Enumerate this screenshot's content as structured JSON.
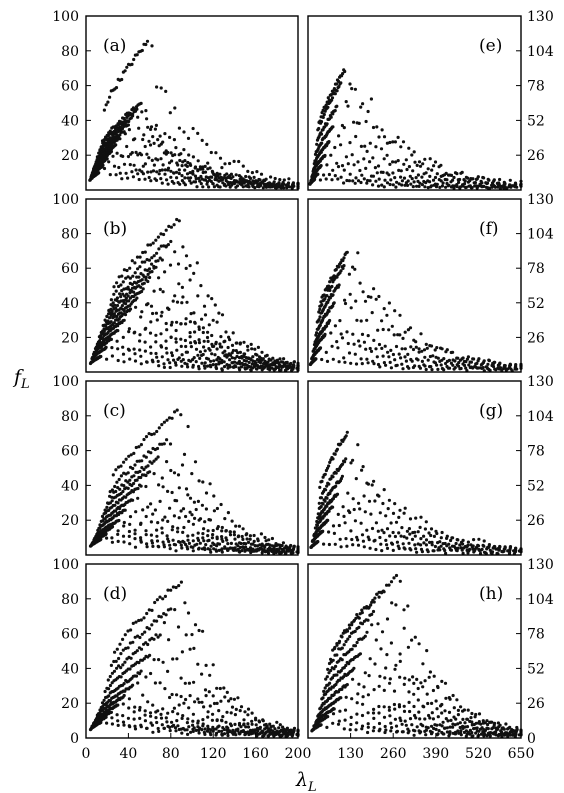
{
  "figure": {
    "ylabel": "f",
    "ylabel_sub": "L",
    "xlabel": "λ",
    "xlabel_sub": "L"
  },
  "chart_data": [
    {
      "panel": "(a)",
      "type": "scatter",
      "col": 0,
      "row": 0,
      "xlim": [
        0,
        200
      ],
      "ylim": [
        0,
        100
      ],
      "yticks": [
        20,
        40,
        60,
        80,
        100
      ],
      "ytick_labels": [
        "20",
        "40",
        "60",
        "80",
        "100"
      ],
      "peak_lambda": [
        12,
        16,
        20,
        24,
        28,
        32,
        36,
        40,
        44,
        48,
        52,
        58
      ],
      "peak_f": [
        10,
        14,
        18,
        22,
        26,
        30,
        34,
        38,
        42,
        46,
        50,
        85
      ],
      "tail_to": 200
    },
    {
      "panel": "(b)",
      "type": "scatter",
      "col": 0,
      "row": 1,
      "xlim": [
        0,
        200
      ],
      "ylim": [
        0,
        100
      ],
      "yticks": [
        20,
        40,
        60,
        80,
        100
      ],
      "ytick_labels": [
        "20",
        "40",
        "60",
        "80",
        "100"
      ],
      "peak_lambda": [
        14,
        19,
        24,
        30,
        36,
        42,
        48,
        54,
        60,
        66,
        72,
        80,
        88
      ],
      "peak_f": [
        9,
        14,
        19,
        24,
        30,
        36,
        42,
        48,
        54,
        60,
        66,
        76,
        88
      ],
      "tail_to": 200
    },
    {
      "panel": "(c)",
      "type": "scatter",
      "col": 0,
      "row": 2,
      "xlim": [
        0,
        200
      ],
      "ylim": [
        0,
        100
      ],
      "yticks": [
        20,
        40,
        60,
        80,
        100
      ],
      "ytick_labels": [
        "20",
        "40",
        "60",
        "80",
        "100"
      ],
      "peak_lambda": [
        14,
        19,
        25,
        31,
        37,
        44,
        52,
        60,
        68,
        76,
        86
      ],
      "peak_f": [
        9,
        12,
        16,
        20,
        26,
        32,
        40,
        48,
        56,
        66,
        82
      ],
      "tail_to": 200
    },
    {
      "panel": "(d)",
      "type": "scatter",
      "col": 0,
      "row": 3,
      "xlim": [
        0,
        200
      ],
      "ylim": [
        0,
        100
      ],
      "yticks": [
        0,
        20,
        40,
        60,
        80,
        100
      ],
      "ytick_labels": [
        "0",
        "20",
        "40",
        "60",
        "80",
        "100"
      ],
      "xticks": [
        0,
        40,
        80,
        120,
        160,
        200
      ],
      "xtick_labels": [
        "0",
        "40",
        "80",
        "120",
        "160",
        "200"
      ],
      "peak_lambda": [
        14,
        19,
        24,
        30,
        36,
        44,
        52,
        60,
        70,
        80,
        90
      ],
      "peak_f": [
        9,
        12,
        15,
        19,
        24,
        30,
        38,
        48,
        60,
        74,
        90
      ],
      "tail_to": 200
    },
    {
      "panel": "(e)",
      "type": "scatter",
      "col": 1,
      "row": 0,
      "xlim": [
        0,
        650
      ],
      "ylim": [
        0,
        130
      ],
      "yticks": [
        26,
        52,
        78,
        104,
        130
      ],
      "ytick_labels": [
        "26",
        "52",
        "78",
        "104",
        "130"
      ],
      "peak_lambda": [
        20,
        30,
        40,
        52,
        64,
        76,
        88,
        100,
        112
      ],
      "peak_f": [
        8,
        12,
        18,
        26,
        36,
        48,
        62,
        80,
        90
      ],
      "tail_to": 650
    },
    {
      "panel": "(f)",
      "type": "scatter",
      "col": 1,
      "row": 1,
      "xlim": [
        0,
        650
      ],
      "ylim": [
        0,
        130
      ],
      "yticks": [
        26,
        52,
        78,
        104,
        130
      ],
      "ytick_labels": [
        "26",
        "52",
        "78",
        "104",
        "130"
      ],
      "peak_lambda": [
        24,
        38,
        52,
        66,
        80,
        95,
        110,
        120
      ],
      "peak_f": [
        10,
        18,
        28,
        38,
        52,
        66,
        80,
        90
      ],
      "tail_to": 650
    },
    {
      "panel": "(g)",
      "type": "scatter",
      "col": 1,
      "row": 2,
      "xlim": [
        0,
        650
      ],
      "ylim": [
        0,
        130
      ],
      "yticks": [
        26,
        52,
        78,
        104,
        130
      ],
      "ytick_labels": [
        "26",
        "52",
        "78",
        "104",
        "130"
      ],
      "peak_lambda": [
        30,
        45,
        60,
        75,
        90,
        105,
        115,
        120
      ],
      "peak_f": [
        10,
        18,
        26,
        36,
        46,
        58,
        72,
        92
      ],
      "tail_to": 650
    },
    {
      "panel": "(h)",
      "type": "scatter",
      "col": 1,
      "row": 3,
      "xlim": [
        0,
        650
      ],
      "ylim": [
        0,
        130
      ],
      "yticks": [
        0,
        26,
        52,
        78,
        104,
        130
      ],
      "ytick_labels": [
        "0",
        "26",
        "52",
        "78",
        "104",
        "130"
      ],
      "xticks": [
        130,
        260,
        390,
        520,
        650
      ],
      "xtick_labels": [
        "130",
        "260",
        "390",
        "520",
        "650"
      ],
      "peak_lambda": [
        40,
        60,
        80,
        100,
        120,
        140,
        160,
        180,
        200,
        230,
        270
      ],
      "peak_f": [
        10,
        16,
        22,
        30,
        40,
        52,
        64,
        78,
        94,
        110,
        120
      ],
      "tail_to": 650
    }
  ]
}
